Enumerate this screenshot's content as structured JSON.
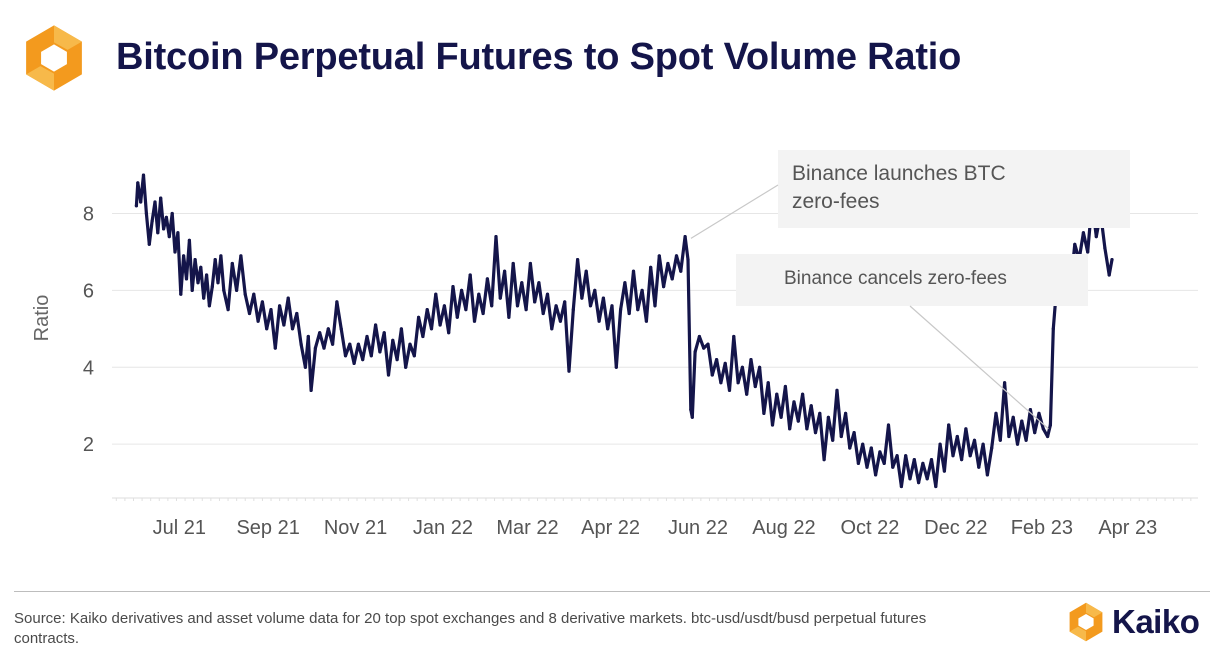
{
  "header": {
    "title": "Bitcoin Perpetual Futures to Spot Volume Ratio"
  },
  "footer": {
    "source_text": "Source: Kaiko derivatives and asset volume data for 20 top spot exchanges and 8 derivative markets. btc-usd/usdt/busd perpetual futures contracts.",
    "brand": "Kaiko"
  },
  "colors": {
    "title": "#14154a",
    "line": "#14154a",
    "logo_orange": "#f39a1e",
    "logo_orange_light": "#f7b94a",
    "annotation_box": "#f3f3f3",
    "grid": "#e6e6e6"
  },
  "icons": {
    "header_logo": "kaiko-logo-icon",
    "footer_logo": "kaiko-logo-icon"
  },
  "chart_data": {
    "type": "line",
    "title": "Bitcoin Perpetual Futures to Spot Volume Ratio",
    "xlabel": "",
    "ylabel": "Ratio",
    "ylim": [
      0.6,
      9.6
    ],
    "yticks": [
      2,
      4,
      6,
      8
    ],
    "grid": true,
    "x_tick_labels": [
      {
        "date": "2021-07-01",
        "label": "Jul 21"
      },
      {
        "date": "2021-09-01",
        "label": "Sep 21"
      },
      {
        "date": "2021-11-01",
        "label": "Nov 21"
      },
      {
        "date": "2022-01-01",
        "label": "Jan 22"
      },
      {
        "date": "2022-03-01",
        "label": "Mar 22"
      },
      {
        "date": "2022-04-28",
        "label": "Apr 22"
      },
      {
        "date": "2022-06-28",
        "label": "Jun 22"
      },
      {
        "date": "2022-08-27",
        "label": "Aug 22"
      },
      {
        "date": "2022-10-26",
        "label": "Oct 22"
      },
      {
        "date": "2022-12-25",
        "label": "Dec 22"
      },
      {
        "date": "2023-02-23",
        "label": "Feb 23"
      },
      {
        "date": "2023-04-24",
        "label": "Apr 23"
      }
    ],
    "xlim": [
      "2021-05-15",
      "2023-06-12"
    ],
    "series": [
      {
        "points": [
          [
            "2021-06-01",
            8.2
          ],
          [
            "2021-06-02",
            8.8
          ],
          [
            "2021-06-04",
            8.3
          ],
          [
            "2021-06-06",
            9.0
          ],
          [
            "2021-06-08",
            8.0
          ],
          [
            "2021-06-10",
            7.2
          ],
          [
            "2021-06-12",
            7.8
          ],
          [
            "2021-06-14",
            8.3
          ],
          [
            "2021-06-16",
            7.5
          ],
          [
            "2021-06-18",
            8.4
          ],
          [
            "2021-06-20",
            7.6
          ],
          [
            "2021-06-22",
            7.9
          ],
          [
            "2021-06-24",
            7.4
          ],
          [
            "2021-06-26",
            8.0
          ],
          [
            "2021-06-28",
            7.0
          ],
          [
            "2021-06-30",
            7.5
          ],
          [
            "2021-07-02",
            5.9
          ],
          [
            "2021-07-04",
            6.9
          ],
          [
            "2021-07-06",
            6.3
          ],
          [
            "2021-07-08",
            7.3
          ],
          [
            "2021-07-10",
            6.0
          ],
          [
            "2021-07-12",
            6.8
          ],
          [
            "2021-07-14",
            6.2
          ],
          [
            "2021-07-16",
            6.6
          ],
          [
            "2021-07-18",
            5.8
          ],
          [
            "2021-07-20",
            6.4
          ],
          [
            "2021-07-22",
            5.6
          ],
          [
            "2021-07-24",
            6.1
          ],
          [
            "2021-07-26",
            6.8
          ],
          [
            "2021-07-28",
            6.2
          ],
          [
            "2021-07-30",
            6.9
          ],
          [
            "2021-08-01",
            6.0
          ],
          [
            "2021-08-04",
            5.5
          ],
          [
            "2021-08-07",
            6.7
          ],
          [
            "2021-08-10",
            6.0
          ],
          [
            "2021-08-13",
            6.9
          ],
          [
            "2021-08-16",
            5.9
          ],
          [
            "2021-08-19",
            5.4
          ],
          [
            "2021-08-22",
            5.9
          ],
          [
            "2021-08-25",
            5.2
          ],
          [
            "2021-08-28",
            5.7
          ],
          [
            "2021-08-31",
            5.0
          ],
          [
            "2021-09-03",
            5.5
          ],
          [
            "2021-09-06",
            4.5
          ],
          [
            "2021-09-09",
            5.6
          ],
          [
            "2021-09-12",
            5.1
          ],
          [
            "2021-09-15",
            5.8
          ],
          [
            "2021-09-18",
            5.0
          ],
          [
            "2021-09-21",
            5.4
          ],
          [
            "2021-09-24",
            4.6
          ],
          [
            "2021-09-27",
            4.0
          ],
          [
            "2021-09-29",
            4.8
          ],
          [
            "2021-10-01",
            3.4
          ],
          [
            "2021-10-04",
            4.5
          ],
          [
            "2021-10-07",
            4.9
          ],
          [
            "2021-10-10",
            4.5
          ],
          [
            "2021-10-13",
            5.0
          ],
          [
            "2021-10-16",
            4.6
          ],
          [
            "2021-10-19",
            5.7
          ],
          [
            "2021-10-22",
            5.0
          ],
          [
            "2021-10-25",
            4.3
          ],
          [
            "2021-10-28",
            4.6
          ],
          [
            "2021-10-31",
            4.1
          ],
          [
            "2021-11-03",
            4.6
          ],
          [
            "2021-11-06",
            4.2
          ],
          [
            "2021-11-09",
            4.8
          ],
          [
            "2021-11-12",
            4.3
          ],
          [
            "2021-11-15",
            5.1
          ],
          [
            "2021-11-18",
            4.4
          ],
          [
            "2021-11-21",
            4.9
          ],
          [
            "2021-11-24",
            3.8
          ],
          [
            "2021-11-27",
            4.7
          ],
          [
            "2021-11-30",
            4.2
          ],
          [
            "2021-12-03",
            5.0
          ],
          [
            "2021-12-06",
            4.0
          ],
          [
            "2021-12-09",
            4.6
          ],
          [
            "2021-12-12",
            4.3
          ],
          [
            "2021-12-15",
            5.3
          ],
          [
            "2021-12-18",
            4.8
          ],
          [
            "2021-12-21",
            5.5
          ],
          [
            "2021-12-24",
            5.0
          ],
          [
            "2021-12-27",
            5.9
          ],
          [
            "2021-12-30",
            5.1
          ],
          [
            "2022-01-02",
            5.6
          ],
          [
            "2022-01-05",
            4.9
          ],
          [
            "2022-01-08",
            6.1
          ],
          [
            "2022-01-11",
            5.3
          ],
          [
            "2022-01-14",
            6.0
          ],
          [
            "2022-01-17",
            5.5
          ],
          [
            "2022-01-20",
            6.4
          ],
          [
            "2022-01-23",
            5.2
          ],
          [
            "2022-01-26",
            5.9
          ],
          [
            "2022-01-29",
            5.4
          ],
          [
            "2022-02-01",
            6.3
          ],
          [
            "2022-02-04",
            5.6
          ],
          [
            "2022-02-07",
            7.4
          ],
          [
            "2022-02-10",
            5.8
          ],
          [
            "2022-02-13",
            6.5
          ],
          [
            "2022-02-16",
            5.3
          ],
          [
            "2022-02-19",
            6.7
          ],
          [
            "2022-02-22",
            5.6
          ],
          [
            "2022-02-25",
            6.2
          ],
          [
            "2022-02-28",
            5.5
          ],
          [
            "2022-03-03",
            6.7
          ],
          [
            "2022-03-06",
            5.7
          ],
          [
            "2022-03-09",
            6.2
          ],
          [
            "2022-03-12",
            5.4
          ],
          [
            "2022-03-15",
            5.9
          ],
          [
            "2022-03-18",
            5.0
          ],
          [
            "2022-03-21",
            5.6
          ],
          [
            "2022-03-24",
            5.2
          ],
          [
            "2022-03-27",
            5.7
          ],
          [
            "2022-03-30",
            3.9
          ],
          [
            "2022-04-02",
            5.5
          ],
          [
            "2022-04-05",
            6.8
          ],
          [
            "2022-04-08",
            5.8
          ],
          [
            "2022-04-11",
            6.5
          ],
          [
            "2022-04-14",
            5.6
          ],
          [
            "2022-04-17",
            6.0
          ],
          [
            "2022-04-20",
            5.2
          ],
          [
            "2022-04-23",
            5.8
          ],
          [
            "2022-04-26",
            5.0
          ],
          [
            "2022-04-29",
            5.6
          ],
          [
            "2022-05-02",
            4.0
          ],
          [
            "2022-05-05",
            5.5
          ],
          [
            "2022-05-08",
            6.2
          ],
          [
            "2022-05-11",
            5.4
          ],
          [
            "2022-05-14",
            6.5
          ],
          [
            "2022-05-17",
            5.5
          ],
          [
            "2022-05-20",
            6.0
          ],
          [
            "2022-05-23",
            5.2
          ],
          [
            "2022-05-26",
            6.6
          ],
          [
            "2022-05-29",
            5.6
          ],
          [
            "2022-06-01",
            6.9
          ],
          [
            "2022-06-04",
            6.1
          ],
          [
            "2022-06-07",
            6.7
          ],
          [
            "2022-06-10",
            6.3
          ],
          [
            "2022-06-13",
            6.9
          ],
          [
            "2022-06-16",
            6.5
          ],
          [
            "2022-06-19",
            7.4
          ],
          [
            "2022-06-21",
            6.8
          ],
          [
            "2022-06-23",
            2.9
          ],
          [
            "2022-06-24",
            2.7
          ],
          [
            "2022-06-26",
            4.4
          ],
          [
            "2022-06-29",
            4.8
          ],
          [
            "2022-07-02",
            4.5
          ],
          [
            "2022-07-05",
            4.6
          ],
          [
            "2022-07-08",
            3.8
          ],
          [
            "2022-07-11",
            4.2
          ],
          [
            "2022-07-14",
            3.6
          ],
          [
            "2022-07-17",
            4.1
          ],
          [
            "2022-07-20",
            3.4
          ],
          [
            "2022-07-23",
            4.8
          ],
          [
            "2022-07-26",
            3.6
          ],
          [
            "2022-07-29",
            4.0
          ],
          [
            "2022-08-01",
            3.3
          ],
          [
            "2022-08-04",
            4.2
          ],
          [
            "2022-08-07",
            3.5
          ],
          [
            "2022-08-10",
            4.0
          ],
          [
            "2022-08-13",
            2.8
          ],
          [
            "2022-08-16",
            3.6
          ],
          [
            "2022-08-19",
            2.5
          ],
          [
            "2022-08-22",
            3.3
          ],
          [
            "2022-08-25",
            2.7
          ],
          [
            "2022-08-28",
            3.5
          ],
          [
            "2022-08-31",
            2.4
          ],
          [
            "2022-09-03",
            3.1
          ],
          [
            "2022-09-06",
            2.6
          ],
          [
            "2022-09-09",
            3.3
          ],
          [
            "2022-09-12",
            2.4
          ],
          [
            "2022-09-15",
            3.0
          ],
          [
            "2022-09-18",
            2.3
          ],
          [
            "2022-09-21",
            2.8
          ],
          [
            "2022-09-24",
            1.6
          ],
          [
            "2022-09-27",
            2.7
          ],
          [
            "2022-09-30",
            2.1
          ],
          [
            "2022-10-03",
            3.4
          ],
          [
            "2022-10-06",
            2.2
          ],
          [
            "2022-10-09",
            2.8
          ],
          [
            "2022-10-12",
            1.9
          ],
          [
            "2022-10-15",
            2.3
          ],
          [
            "2022-10-18",
            1.5
          ],
          [
            "2022-10-21",
            2.0
          ],
          [
            "2022-10-24",
            1.4
          ],
          [
            "2022-10-27",
            1.9
          ],
          [
            "2022-10-30",
            1.2
          ],
          [
            "2022-11-02",
            1.8
          ],
          [
            "2022-11-05",
            1.5
          ],
          [
            "2022-11-08",
            2.5
          ],
          [
            "2022-11-11",
            1.4
          ],
          [
            "2022-11-14",
            1.7
          ],
          [
            "2022-11-17",
            0.9
          ],
          [
            "2022-11-20",
            1.7
          ],
          [
            "2022-11-23",
            1.1
          ],
          [
            "2022-11-26",
            1.6
          ],
          [
            "2022-11-29",
            1.0
          ],
          [
            "2022-12-02",
            1.5
          ],
          [
            "2022-12-05",
            1.1
          ],
          [
            "2022-12-08",
            1.6
          ],
          [
            "2022-12-11",
            0.9
          ],
          [
            "2022-12-14",
            2.0
          ],
          [
            "2022-12-17",
            1.3
          ],
          [
            "2022-12-20",
            2.5
          ],
          [
            "2022-12-23",
            1.7
          ],
          [
            "2022-12-26",
            2.2
          ],
          [
            "2022-12-29",
            1.6
          ],
          [
            "2023-01-01",
            2.4
          ],
          [
            "2023-01-04",
            1.7
          ],
          [
            "2023-01-07",
            2.1
          ],
          [
            "2023-01-10",
            1.4
          ],
          [
            "2023-01-13",
            2.0
          ],
          [
            "2023-01-16",
            1.2
          ],
          [
            "2023-01-19",
            1.9
          ],
          [
            "2023-01-22",
            2.8
          ],
          [
            "2023-01-25",
            2.1
          ],
          [
            "2023-01-28",
            3.6
          ],
          [
            "2023-01-31",
            2.2
          ],
          [
            "2023-02-03",
            2.7
          ],
          [
            "2023-02-06",
            2.0
          ],
          [
            "2023-02-09",
            2.6
          ],
          [
            "2023-02-12",
            2.1
          ],
          [
            "2023-02-15",
            2.9
          ],
          [
            "2023-02-18",
            2.3
          ],
          [
            "2023-02-21",
            2.8
          ],
          [
            "2023-02-24",
            2.4
          ],
          [
            "2023-02-27",
            2.2
          ],
          [
            "2023-03-01",
            2.5
          ],
          [
            "2023-03-03",
            5.0
          ],
          [
            "2023-03-06",
            6.4
          ],
          [
            "2023-03-09",
            5.8
          ],
          [
            "2023-03-12",
            6.6
          ],
          [
            "2023-03-15",
            6.1
          ],
          [
            "2023-03-18",
            7.2
          ],
          [
            "2023-03-21",
            6.8
          ],
          [
            "2023-03-24",
            7.5
          ],
          [
            "2023-03-27",
            7.0
          ],
          [
            "2023-03-30",
            8.3
          ],
          [
            "2023-04-02",
            7.4
          ],
          [
            "2023-04-05",
            8.0
          ],
          [
            "2023-04-08",
            7.1
          ],
          [
            "2023-04-11",
            6.4
          ],
          [
            "2023-04-13",
            6.8
          ]
        ]
      }
    ],
    "annotations": [
      {
        "text_lines": [
          "Binance launches BTC",
          "zero-fees"
        ],
        "target": {
          "date": "2022-06-21",
          "value": 7.3
        }
      },
      {
        "text_lines": [
          "Binance cancels zero-fees"
        ],
        "target": {
          "date": "2023-03-01",
          "value": 2.4
        }
      }
    ]
  }
}
